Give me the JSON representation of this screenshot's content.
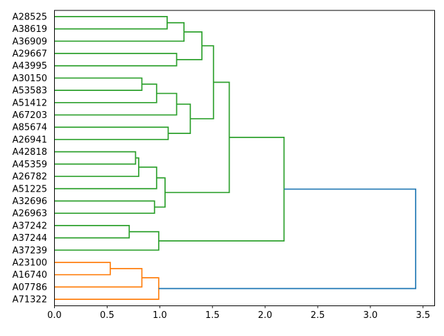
{
  "figure": {
    "background": "#ffffff"
  },
  "chart_data": {
    "type": "dendrogram",
    "orientation": "left_labels_root_right",
    "title": "",
    "xlabel": "",
    "ylabel": "",
    "grid": false,
    "legend": "none",
    "xlim": [
      0,
      3.61
    ],
    "xticks": [
      "0.0",
      "0.5",
      "1.0",
      "1.5",
      "2.0",
      "2.5",
      "3.0",
      "3.5"
    ],
    "xtick_values": [
      0,
      0.5,
      1.0,
      1.5,
      2.0,
      2.5,
      3.0,
      3.5
    ],
    "leaves": [
      "A28525",
      "A38619",
      "A36909",
      "A29667",
      "A43995",
      "A30150",
      "A53583",
      "A51412",
      "A67203",
      "A85674",
      "A26941",
      "A42818",
      "A45359",
      "A26782",
      "A51225",
      "A32696",
      "A26963",
      "A37242",
      "A37244",
      "A37239",
      "A23100",
      "A16740",
      "A07786",
      "A71322"
    ],
    "links": [
      {
        "a": "leaf:0",
        "b": "leaf:1",
        "height": 1.07,
        "color": "green"
      },
      {
        "a": "link:0",
        "b": "leaf:2",
        "height": 1.23,
        "color": "green"
      },
      {
        "a": "leaf:3",
        "b": "leaf:4",
        "height": 1.16,
        "color": "green"
      },
      {
        "a": "link:1",
        "b": "link:2",
        "height": 1.4,
        "color": "green"
      },
      {
        "a": "leaf:5",
        "b": "leaf:6",
        "height": 0.83,
        "color": "green"
      },
      {
        "a": "link:4",
        "b": "leaf:7",
        "height": 0.97,
        "color": "green"
      },
      {
        "a": "link:5",
        "b": "leaf:8",
        "height": 1.16,
        "color": "green"
      },
      {
        "a": "leaf:9",
        "b": "leaf:10",
        "height": 1.08,
        "color": "green"
      },
      {
        "a": "link:6",
        "b": "link:7",
        "height": 1.29,
        "color": "green"
      },
      {
        "a": "link:3",
        "b": "link:8",
        "height": 1.51,
        "color": "green"
      },
      {
        "a": "leaf:11",
        "b": "leaf:12",
        "height": 0.77,
        "color": "green"
      },
      {
        "a": "link:10",
        "b": "leaf:13",
        "height": 0.8,
        "color": "green"
      },
      {
        "a": "link:11",
        "b": "leaf:14",
        "height": 0.97,
        "color": "green"
      },
      {
        "a": "leaf:15",
        "b": "leaf:16",
        "height": 0.95,
        "color": "green"
      },
      {
        "a": "link:12",
        "b": "link:13",
        "height": 1.05,
        "color": "green"
      },
      {
        "a": "link:9",
        "b": "link:14",
        "height": 1.66,
        "color": "green"
      },
      {
        "a": "leaf:17",
        "b": "leaf:18",
        "height": 0.71,
        "color": "green"
      },
      {
        "a": "link:16",
        "b": "leaf:19",
        "height": 0.99,
        "color": "green"
      },
      {
        "a": "link:15",
        "b": "link:17",
        "height": 2.18,
        "color": "green"
      },
      {
        "a": "leaf:20",
        "b": "leaf:21",
        "height": 0.53,
        "color": "orange"
      },
      {
        "a": "link:19",
        "b": "leaf:22",
        "height": 0.83,
        "color": "orange"
      },
      {
        "a": "link:20",
        "b": "leaf:23",
        "height": 0.99,
        "color": "orange"
      },
      {
        "a": "link:18",
        "b": "link:21",
        "height": 3.43,
        "color": "blue"
      }
    ],
    "colors": {
      "green": "#2ca02c",
      "orange": "#ff7f0e",
      "blue": "#1f77b4",
      "axis": "#000000",
      "text": "#000000"
    }
  }
}
